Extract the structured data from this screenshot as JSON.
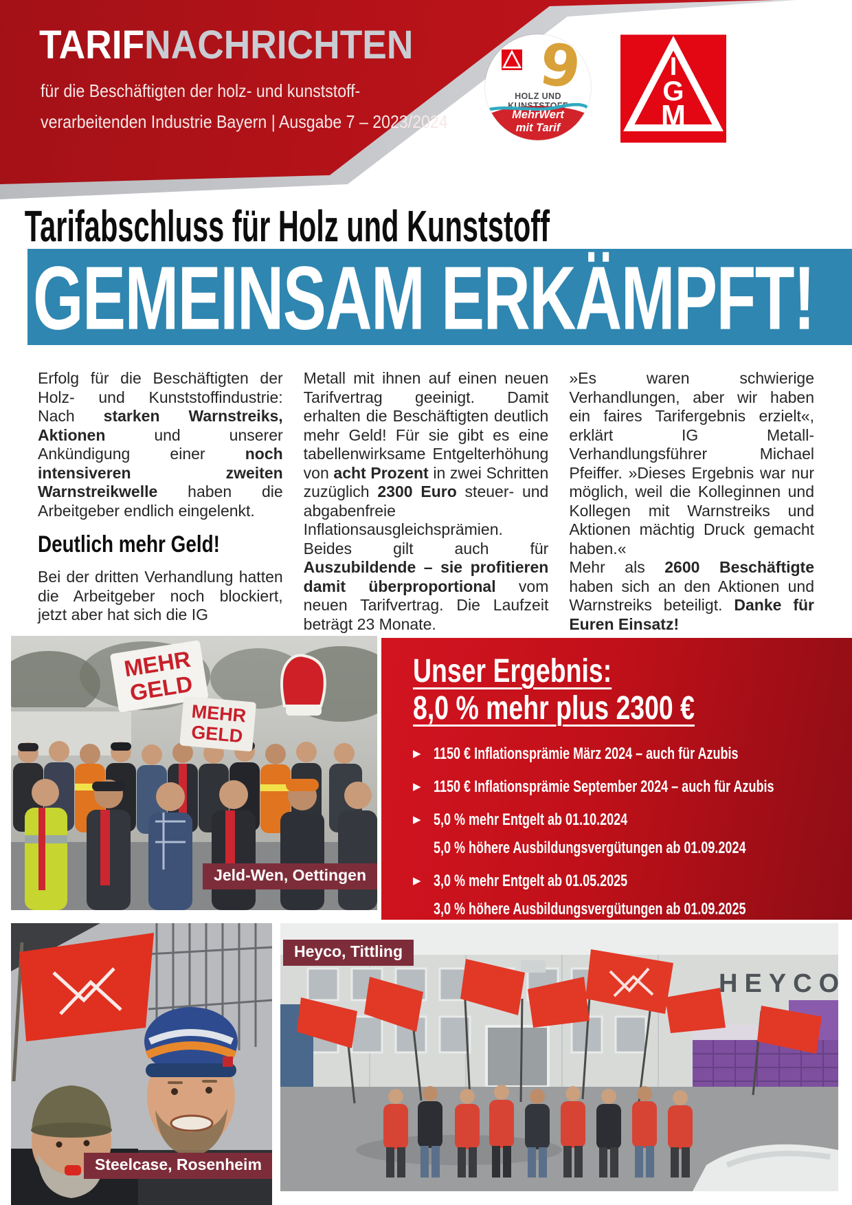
{
  "colors": {
    "masthead_red": "#b91319",
    "banner_blue": "#2f86b0",
    "result_box_red": "#c11019",
    "caption_maroon": "#7d2d3a",
    "igm_logo_red": "#e30613",
    "badge_gold": "#d9a139",
    "badge_teal": "#2fa9c0"
  },
  "masthead": {
    "title_part1": "TARIF",
    "title_part2": "NACHRICHTEN",
    "subtitle_line1": "für die Beschäftigten der holz- und kunststoff-",
    "subtitle_line2": "verarbeitenden Industrie Bayern | Ausgabe 7 – 2023/2024",
    "badge": {
      "title": "HOLZ UND KUNSTSTOFF",
      "swirl_glyph": "9",
      "slogan_line1": "MehrWert",
      "slogan_line2": "mit Tarif"
    },
    "igm_logo": {
      "l1": "I",
      "l2": "G",
      "l3": "M"
    }
  },
  "article": {
    "kicker": "Tarifabschluss für Holz und Kunststoff",
    "banner_headline": "GEMEINSAM ERKÄMPFT!",
    "column1": {
      "para1": [
        {
          "t": "Erfolg für die Beschäftigten der Holz- und Kunststoffindustrie: Nach ",
          "b": false
        },
        {
          "t": "starken Warnstreiks, Aktionen",
          "b": true
        },
        {
          "t": " und unserer Ankündigung einer ",
          "b": false
        },
        {
          "t": "noch intensiveren zweiten Warnstreikwelle",
          "b": true
        },
        {
          "t": " haben die Arbeitgeber endlich eingelenkt.",
          "b": false
        }
      ],
      "subhead": "Deutlich mehr Geld!",
      "para2": [
        {
          "t": "Bei der dritten Verhandlung hatten die Arbeitgeber noch blockiert, jetzt aber hat sich die IG",
          "b": false
        }
      ]
    },
    "column2": {
      "para1": [
        {
          "t": "Metall mit ihnen auf einen neuen Tarifvertrag geeinigt. Damit erhalten die Beschäftigten deutlich mehr Geld! Für sie gibt es eine tabellenwirksame Entgelterhöhung von ",
          "b": false
        },
        {
          "t": "acht Prozent",
          "b": true
        },
        {
          "t": " in zwei Schritten zuzüglich ",
          "b": false
        },
        {
          "t": "2300 Euro",
          "b": true
        },
        {
          "t": " steuer- und abgabenfreie Inflationsausgleichsprämien. Beides gilt auch für ",
          "b": false
        },
        {
          "t": "Auszubildende – sie profitieren damit überproportional",
          "b": true
        },
        {
          "t": " vom neuen Tarifvertrag. Die Laufzeit beträgt 23 Monate.",
          "b": false
        }
      ]
    },
    "column3": {
      "para1": [
        {
          "t": "»Es waren schwierige Verhandlungen, aber wir haben ein faires Tarifergebnis erzielt«, erklärt IG Metall-Verhandlungsführer Michael Pfeiffer. »Dieses Ergebnis war nur möglich, weil die Kolleginnen und Kollegen mit Warnstreiks und Aktionen mächtig Druck gemacht haben.«",
          "b": false
        }
      ],
      "para2": [
        {
          "t": "Mehr als ",
          "b": false
        },
        {
          "t": "2600 Beschäftigte",
          "b": true
        },
        {
          "t": " haben sich an den Aktionen und Warnstreiks beteiligt. ",
          "b": false
        },
        {
          "t": "Danke für Euren Einsatz!",
          "b": true
        }
      ]
    }
  },
  "result_box": {
    "title_line1": "Unser Ergebnis:",
    "title_line2": "8,0 % mehr plus 2300 €",
    "bullets": [
      {
        "text": "1150 € Inflationsprämie März 2024 – auch für Azubis"
      },
      {
        "text": "1150 € Inflationsprämie September 2024 – auch für Azubis"
      },
      {
        "text": "5,0 % mehr Entgelt ab 01.10.2024"
      },
      {
        "text": "5,0 % höhere Ausbildungsvergütungen ab 01.09.2024"
      },
      {
        "text": "3,0 % mehr Entgelt ab 01.05.2025"
      },
      {
        "text": "3,0 % höhere Ausbildungsvergütungen ab 01.09.2025"
      }
    ]
  },
  "photos": {
    "jeld_wen": {
      "caption": "Jeld-Wen, Oettingen",
      "sign1_line1": "MEHR",
      "sign1_line2": "GELD",
      "sign2_line1": "MEHR",
      "sign2_line2": "GELD"
    },
    "steelcase": {
      "caption": "Steelcase, Rosenheim"
    },
    "heyco": {
      "caption": "Heyco, Tittling",
      "building_sign": "HEYCO"
    }
  }
}
